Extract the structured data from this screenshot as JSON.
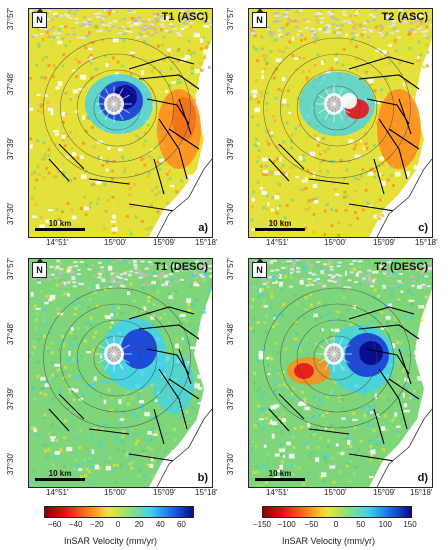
{
  "panels": [
    {
      "title": "T1 (ASC)",
      "letter": "a)",
      "north": "N",
      "scale": "10 km",
      "scheme": "asc1"
    },
    {
      "title": "T2 (ASC)",
      "letter": "c)",
      "north": "N",
      "scale": "10 km",
      "scheme": "asc2"
    },
    {
      "title": "T1 (DESC)",
      "letter": "b)",
      "north": "N",
      "scale": "10 km",
      "scheme": "desc1"
    },
    {
      "title": "T2 (DESC)",
      "letter": "d)",
      "north": "N",
      "scale": "10 km",
      "scheme": "desc2"
    }
  ],
  "lat_labels": [
    "37°57'",
    "37°48'",
    "37°39'",
    "37°30'"
  ],
  "lon_labels": [
    "14°51'",
    "15°00'",
    "15°09'",
    "15°18'"
  ],
  "colorbars": [
    {
      "title": "InSAR Velocity (mm/yr)",
      "ticks": [
        "−60",
        "−40",
        "−20",
        "0",
        "20",
        "40",
        "60"
      ],
      "min": -70,
      "max": 70
    },
    {
      "title": "InSAR Velocity (mm/yr)",
      "ticks": [
        "−150",
        "−100",
        "−50",
        "0",
        "50",
        "100",
        "150"
      ],
      "min": -150,
      "max": 150
    }
  ],
  "colors": {
    "red": "#e8141a",
    "orange": "#ff8a1c",
    "yellow": "#e4e23a",
    "green": "#7fd67a",
    "cyan": "#3fd2f0",
    "blue": "#1a3cd6",
    "navy": "#0a0a8c",
    "relief": "#c8c8c8"
  }
}
